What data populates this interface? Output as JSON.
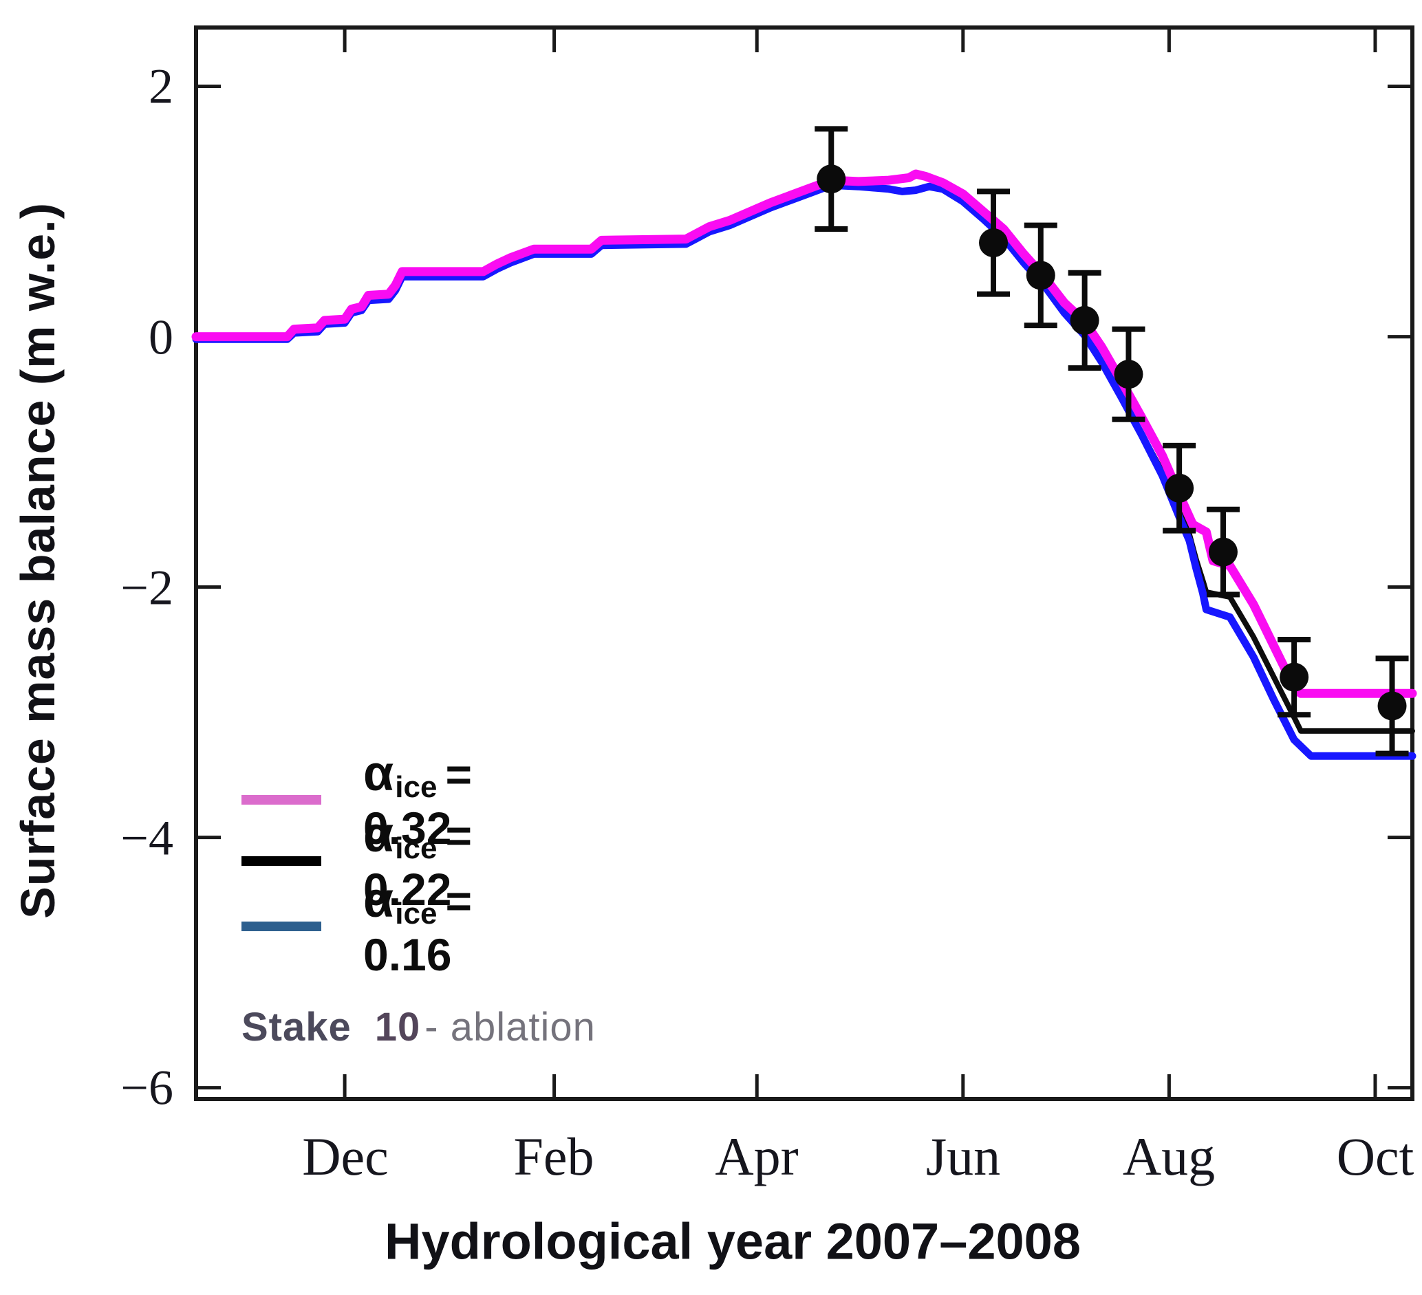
{
  "chart_data": {
    "type": "line",
    "title": "",
    "xlabel": "Hydrological year 2007–2008",
    "ylabel": "Surface mass balance (m w.e.)",
    "x_axis": {
      "unit": "days since 1 October 2007",
      "range": [
        17,
        377
      ],
      "ticks": [
        {
          "day": 61,
          "label": "Dec"
        },
        {
          "day": 123,
          "label": "Feb"
        },
        {
          "day": 183,
          "label": "Apr"
        },
        {
          "day": 244,
          "label": "Jun"
        },
        {
          "day": 305,
          "label": "Aug"
        },
        {
          "day": 366,
          "label": "Oct"
        }
      ]
    },
    "y_axis": {
      "unit": "m w.e.",
      "range": [
        -6.09,
        2.47
      ],
      "ticks": [
        {
          "value": 2,
          "label": "2"
        },
        {
          "value": 0,
          "label": "0"
        },
        {
          "value": -2,
          "label": "−2"
        },
        {
          "value": -4,
          "label": "−4"
        },
        {
          "value": -6,
          "label": "−6"
        }
      ]
    },
    "series": [
      {
        "name": "albedo_ice_0.32",
        "color": "#fa0cf2",
        "legend_color": "#db6ccc",
        "points": [
          [
            17,
            0.0
          ],
          [
            44,
            0.0
          ],
          [
            46,
            0.06
          ],
          [
            53,
            0.07
          ],
          [
            55,
            0.13
          ],
          [
            61,
            0.14
          ],
          [
            63,
            0.22
          ],
          [
            66,
            0.24
          ],
          [
            68,
            0.33
          ],
          [
            74,
            0.34
          ],
          [
            76,
            0.41
          ],
          [
            78,
            0.52
          ],
          [
            102,
            0.52
          ],
          [
            106,
            0.58
          ],
          [
            110,
            0.63
          ],
          [
            117,
            0.7
          ],
          [
            134,
            0.7
          ],
          [
            137,
            0.77
          ],
          [
            162,
            0.78
          ],
          [
            169,
            0.88
          ],
          [
            175,
            0.93
          ],
          [
            181,
            1.0
          ],
          [
            187,
            1.07
          ],
          [
            193,
            1.13
          ],
          [
            199,
            1.19
          ],
          [
            205,
            1.25
          ],
          [
            213,
            1.24
          ],
          [
            222,
            1.25
          ],
          [
            228,
            1.27
          ],
          [
            230,
            1.3
          ],
          [
            233,
            1.28
          ],
          [
            238,
            1.23
          ],
          [
            244,
            1.14
          ],
          [
            250,
            1.0
          ],
          [
            256,
            0.86
          ],
          [
            262,
            0.66
          ],
          [
            268,
            0.48
          ],
          [
            274,
            0.27
          ],
          [
            280,
            0.12
          ],
          [
            285,
            -0.08
          ],
          [
            291,
            -0.36
          ],
          [
            297,
            -0.65
          ],
          [
            303,
            -0.95
          ],
          [
            308,
            -1.26
          ],
          [
            312,
            -1.5
          ],
          [
            316,
            -1.56
          ],
          [
            318,
            -1.79
          ],
          [
            323,
            -1.83
          ],
          [
            330,
            -2.14
          ],
          [
            336,
            -2.47
          ],
          [
            342,
            -2.8
          ],
          [
            344,
            -2.85
          ],
          [
            377,
            -2.85
          ]
        ]
      },
      {
        "name": "albedo_ice_0.22",
        "color": "#0d0d0d",
        "legend_color": "#000000",
        "points": [
          [
            17,
            -0.02
          ],
          [
            44,
            -0.02
          ],
          [
            46,
            0.03
          ],
          [
            53,
            0.04
          ],
          [
            55,
            0.1
          ],
          [
            61,
            0.11
          ],
          [
            63,
            0.19
          ],
          [
            66,
            0.21
          ],
          [
            68,
            0.29
          ],
          [
            74,
            0.3
          ],
          [
            76,
            0.37
          ],
          [
            78,
            0.48
          ],
          [
            102,
            0.48
          ],
          [
            106,
            0.54
          ],
          [
            110,
            0.59
          ],
          [
            117,
            0.66
          ],
          [
            134,
            0.66
          ],
          [
            137,
            0.73
          ],
          [
            162,
            0.74
          ],
          [
            169,
            0.84
          ],
          [
            175,
            0.89
          ],
          [
            181,
            0.96
          ],
          [
            187,
            1.03
          ],
          [
            193,
            1.09
          ],
          [
            199,
            1.15
          ],
          [
            205,
            1.21
          ],
          [
            213,
            1.2
          ],
          [
            222,
            1.18
          ],
          [
            226,
            1.16
          ],
          [
            230,
            1.17
          ],
          [
            234,
            1.2
          ],
          [
            238,
            1.18
          ],
          [
            244,
            1.08
          ],
          [
            250,
            0.94
          ],
          [
            256,
            0.79
          ],
          [
            262,
            0.59
          ],
          [
            268,
            0.41
          ],
          [
            274,
            0.19
          ],
          [
            280,
            0.01
          ],
          [
            285,
            -0.2
          ],
          [
            291,
            -0.49
          ],
          [
            297,
            -0.78
          ],
          [
            303,
            -1.08
          ],
          [
            308,
            -1.4
          ],
          [
            311,
            -1.58
          ],
          [
            313,
            -1.78
          ],
          [
            315,
            -1.95
          ],
          [
            316,
            -2.04
          ],
          [
            323,
            -2.08
          ],
          [
            330,
            -2.4
          ],
          [
            336,
            -2.72
          ],
          [
            342,
            -3.04
          ],
          [
            344,
            -3.15
          ],
          [
            377,
            -3.15
          ]
        ]
      },
      {
        "name": "albedo_ice_0.16",
        "color": "#1717ff",
        "legend_color": "#2d5f8e",
        "points": [
          [
            17,
            -0.02
          ],
          [
            44,
            -0.02
          ],
          [
            46,
            0.03
          ],
          [
            53,
            0.04
          ],
          [
            55,
            0.1
          ],
          [
            61,
            0.11
          ],
          [
            63,
            0.19
          ],
          [
            66,
            0.21
          ],
          [
            68,
            0.29
          ],
          [
            74,
            0.3
          ],
          [
            76,
            0.37
          ],
          [
            78,
            0.48
          ],
          [
            102,
            0.48
          ],
          [
            106,
            0.54
          ],
          [
            110,
            0.59
          ],
          [
            117,
            0.66
          ],
          [
            134,
            0.66
          ],
          [
            137,
            0.73
          ],
          [
            162,
            0.74
          ],
          [
            169,
            0.84
          ],
          [
            175,
            0.89
          ],
          [
            181,
            0.96
          ],
          [
            187,
            1.03
          ],
          [
            193,
            1.09
          ],
          [
            199,
            1.15
          ],
          [
            205,
            1.21
          ],
          [
            213,
            1.2
          ],
          [
            222,
            1.18
          ],
          [
            226,
            1.16
          ],
          [
            230,
            1.17
          ],
          [
            234,
            1.2
          ],
          [
            238,
            1.18
          ],
          [
            244,
            1.08
          ],
          [
            250,
            0.94
          ],
          [
            256,
            0.79
          ],
          [
            262,
            0.59
          ],
          [
            268,
            0.41
          ],
          [
            274,
            0.19
          ],
          [
            280,
            0.01
          ],
          [
            285,
            -0.2
          ],
          [
            291,
            -0.49
          ],
          [
            297,
            -0.79
          ],
          [
            303,
            -1.11
          ],
          [
            308,
            -1.44
          ],
          [
            311,
            -1.63
          ],
          [
            313,
            -1.85
          ],
          [
            315,
            -2.05
          ],
          [
            316,
            -2.18
          ],
          [
            323,
            -2.24
          ],
          [
            330,
            -2.56
          ],
          [
            336,
            -2.9
          ],
          [
            342,
            -3.22
          ],
          [
            347,
            -3.35
          ],
          [
            377,
            -3.35
          ]
        ]
      }
    ],
    "legend": [
      {
        "symbol": "α",
        "sub": "ice",
        "value": "= 0.32"
      },
      {
        "symbol": "α",
        "sub": "ice",
        "value": "= 0.22"
      },
      {
        "symbol": "α",
        "sub": "ice",
        "value": "= 0.16"
      }
    ],
    "observations": {
      "name": "Stake 10 - ablation",
      "marker_color": "#0b0b0b",
      "points": [
        {
          "day": 205,
          "value": 1.26,
          "error": 0.4
        },
        {
          "day": 253,
          "value": 0.75,
          "error": 0.41
        },
        {
          "day": 267,
          "value": 0.49,
          "error": 0.4
        },
        {
          "day": 280,
          "value": 0.13,
          "error": 0.38
        },
        {
          "day": 293,
          "value": -0.3,
          "error": 0.36
        },
        {
          "day": 308,
          "value": -1.21,
          "error": 0.34
        },
        {
          "day": 321,
          "value": -1.72,
          "error": 0.34
        },
        {
          "day": 342,
          "value": -2.72,
          "error": 0.3
        },
        {
          "day": 371,
          "value": -2.95,
          "error": 0.38
        }
      ]
    },
    "annotation": {
      "stake_label": "Stake",
      "stake_number": "10",
      "suffix": "- ablation"
    },
    "layout_hints": {
      "grid": false,
      "legend_position": "lower-left",
      "frame": "box with inward ticks"
    }
  }
}
